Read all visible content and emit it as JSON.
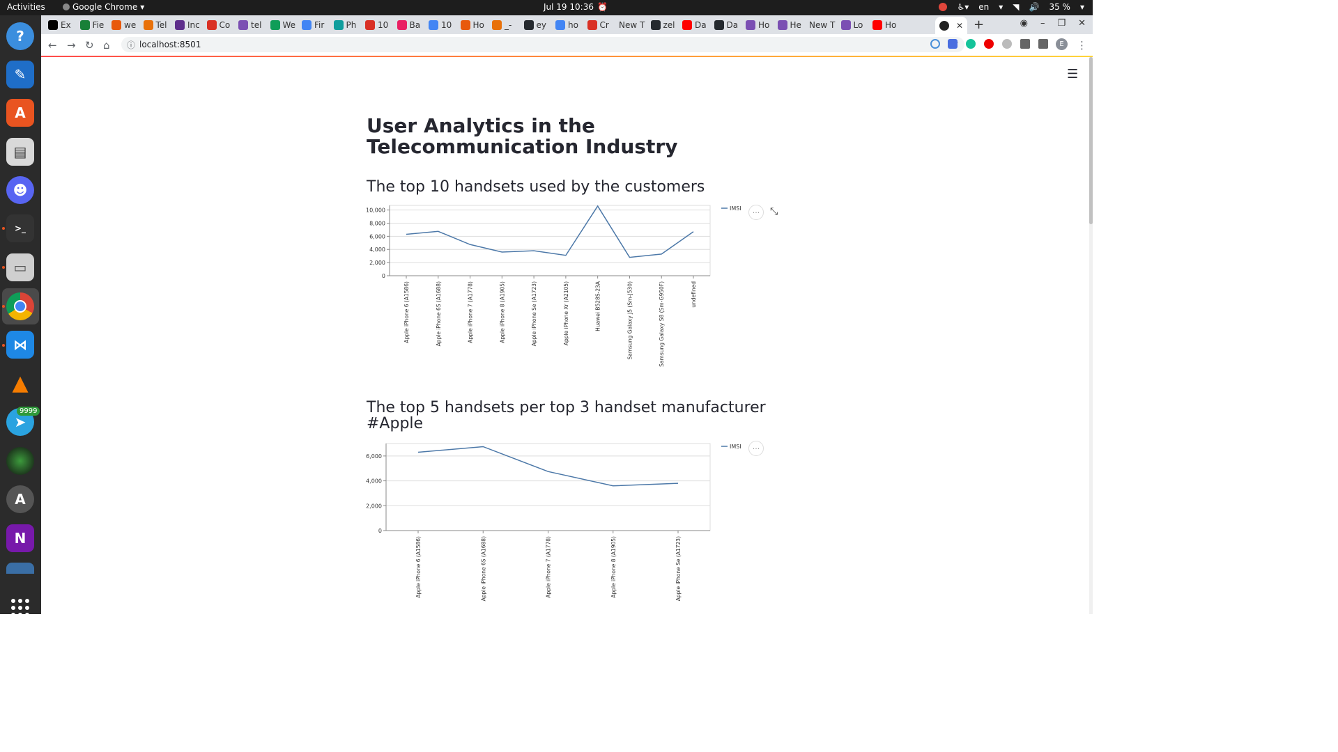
{
  "system_bar": {
    "activities": "Activities",
    "app_name": "Google Chrome",
    "clock": "Jul 19  10:36",
    "language": "en",
    "battery": "35 %"
  },
  "dock": {
    "items": [
      "help-icon",
      "writer-icon",
      "app-store-icon",
      "document-viewer-icon",
      "discord-icon",
      "terminal-icon",
      "files-icon",
      "chrome-icon",
      "vscode-icon",
      "vlc-icon",
      "telegram-icon",
      "camera-icon",
      "software-updater-icon",
      "onenote-icon",
      "drive-icon"
    ],
    "telegram_badge": "9999"
  },
  "tabs": [
    {
      "label": "Ex",
      "color": "#000000"
    },
    {
      "label": "Fie",
      "color": "#188038"
    },
    {
      "label": "we",
      "color": "#e8590c"
    },
    {
      "label": "Tel",
      "color": "#e8710a"
    },
    {
      "label": "Inc",
      "color": "#5e2e8c"
    },
    {
      "label": "Co",
      "color": "#d93025"
    },
    {
      "label": "tel",
      "color": "#7b4fb3"
    },
    {
      "label": "We",
      "color": "#0f9d58"
    },
    {
      "label": "Fir",
      "color": "#4285f4"
    },
    {
      "label": "Ph",
      "color": "#0f9d9d"
    },
    {
      "label": "10",
      "color": "#d93025"
    },
    {
      "label": "Ba",
      "color": "#e91e63"
    },
    {
      "label": "10",
      "color": "#4285f4"
    },
    {
      "label": "Ho",
      "color": "#e8590c"
    },
    {
      "label": "_-",
      "color": "#e8710a"
    },
    {
      "label": "ey",
      "color": "#24292e"
    },
    {
      "label": "ho",
      "color": "#4285f4"
    },
    {
      "label": "Cr",
      "color": "#d93025"
    },
    {
      "label": "New T",
      "color": "#ffffff"
    },
    {
      "label": "zel",
      "color": "#24292e"
    },
    {
      "label": "Da",
      "color": "#ff0000"
    },
    {
      "label": "Da",
      "color": "#24292e"
    },
    {
      "label": "Ho",
      "color": "#7b4fb3"
    },
    {
      "label": "He",
      "color": "#7b4fb3"
    },
    {
      "label": "New T",
      "color": "#ffffff"
    },
    {
      "label": "Lo",
      "color": "#7b4fb3"
    },
    {
      "label": "Ho",
      "color": "#ff0000"
    }
  ],
  "browser": {
    "url": "localhost:8501"
  },
  "page": {
    "title": "User Analytics in the Telecommunication Industry",
    "section1_heading": "The top 10 handsets used by the customers",
    "section2_heading": "The top 5 handsets per top 3 handset manufacturer #Apple"
  },
  "chart_data": [
    {
      "type": "line",
      "categories": [
        "Apple iPhone 6 (A1586)",
        "Apple iPhone 6S (A1688)",
        "Apple iPhone 7 (A1778)",
        "Apple iPhone 8 (A1905)",
        "Apple iPhone Se (A1723)",
        "Apple iPhone Xr (A2105)",
        "Huawei B528S-23A",
        "Samsung Galaxy J5 (Sm-J530)",
        "Samsung Galaxy S8 (Sm-G950F)",
        "undefined"
      ],
      "series": [
        {
          "name": "IMSI",
          "values": [
            6300,
            6750,
            4750,
            3600,
            3800,
            3100,
            10600,
            2800,
            3300,
            6700
          ],
          "color": "#4c78a8"
        }
      ],
      "yticks": [
        0,
        2000,
        4000,
        6000,
        8000,
        10000
      ],
      "ytick_labels": [
        "0",
        "2,000",
        "4,000",
        "6,000",
        "8,000",
        "10,000"
      ],
      "ylim": [
        0,
        10700
      ],
      "grid": true,
      "legend": "top-right"
    },
    {
      "type": "line",
      "categories": [
        "Apple iPhone 6 (A1586)",
        "Apple iPhone 6S (A1688)",
        "Apple iPhone 7 (A1778)",
        "Apple iPhone 8 (A1905)",
        "Apple iPhone Se (A1723)"
      ],
      "series": [
        {
          "name": "IMSI",
          "values": [
            6300,
            6750,
            4750,
            3600,
            3800
          ],
          "color": "#4c78a8"
        }
      ],
      "yticks": [
        0,
        2000,
        4000,
        6000
      ],
      "ytick_labels": [
        "0",
        "2,000",
        "4,000",
        "6,000"
      ],
      "ylim": [
        0,
        7000
      ],
      "grid": true,
      "legend": "top-right"
    }
  ],
  "ui": {
    "more_label": "···",
    "menu_label": "☰",
    "expand_label": "⤡"
  }
}
